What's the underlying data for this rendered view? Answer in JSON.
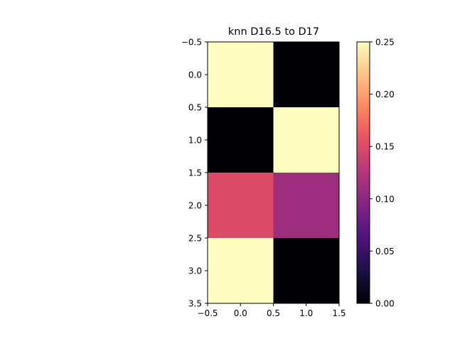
{
  "chart_data": {
    "type": "heatmap",
    "title": "knn D16.5 to D17",
    "xlabel": "",
    "ylabel": "",
    "x_ticks": [
      -0.5,
      0.0,
      0.5,
      1.0,
      1.5
    ],
    "x_tick_labels": [
      "−0.5",
      "0.0",
      "0.5",
      "1.0",
      "1.5"
    ],
    "y_ticks": [
      -0.5,
      0.0,
      0.5,
      1.0,
      1.5,
      2.0,
      2.5,
      3.0,
      3.5
    ],
    "y_tick_labels": [
      "−0.5",
      "0.0",
      "0.5",
      "1.0",
      "1.5",
      "2.0",
      "2.5",
      "3.0",
      "3.5"
    ],
    "xlim": [
      -0.5,
      1.5
    ],
    "ylim": [
      3.5,
      -0.5
    ],
    "values": [
      [
        0.25,
        0.0
      ],
      [
        0.0,
        0.25
      ],
      [
        0.15,
        0.11
      ],
      [
        0.25,
        0.0
      ]
    ],
    "colormap": "magma",
    "color_range": [
      0.0,
      0.25
    ],
    "colorbar_ticks": [
      0.0,
      0.05,
      0.1,
      0.15,
      0.2,
      0.25
    ],
    "colorbar_tick_labels": [
      "0.00",
      "0.05",
      "0.10",
      "0.15",
      "0.20",
      "0.25"
    ],
    "grid": false,
    "colorbar_position": "right"
  }
}
